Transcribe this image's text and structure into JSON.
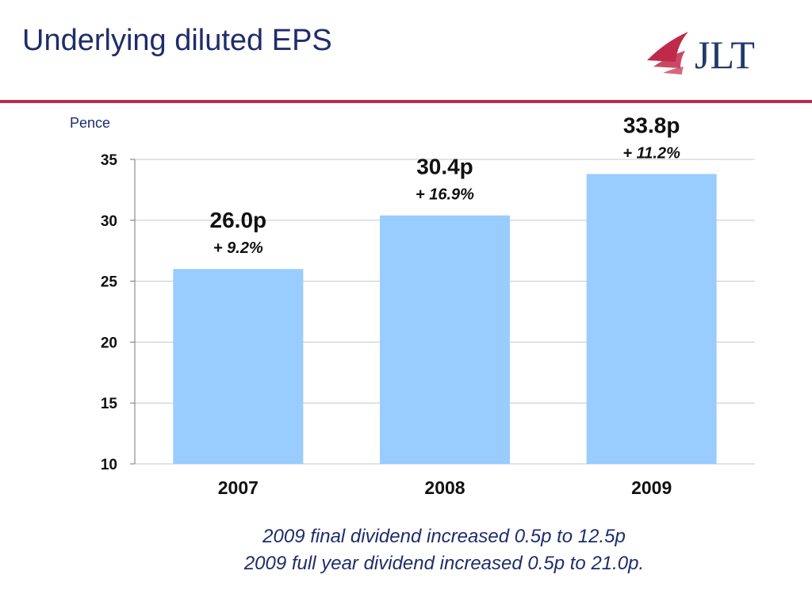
{
  "page": {
    "title": "Underlying diluted EPS",
    "unit_label": "Pence",
    "logo_text": "JLT",
    "notes": [
      "2009 final dividend increased 0.5p to 12.5p",
      "2009 full year dividend increased 0.5p to 21.0p."
    ]
  },
  "colors": {
    "title": "#1f2d6b",
    "rule": "#c0294a",
    "bar": "#99ccff",
    "logo_red": "#c0294a",
    "logo_navy": "#1f3a6b"
  },
  "chart_data": {
    "type": "bar",
    "categories": [
      "2007",
      "2008",
      "2009"
    ],
    "values": [
      26.0,
      30.4,
      33.8
    ],
    "data_labels": [
      "26.0p",
      "30.4p",
      "33.8p"
    ],
    "growth_labels": [
      "+ 9.2%",
      "+ 16.9%",
      "+ 11.2%"
    ],
    "ylim": [
      10,
      35
    ],
    "yticks": [
      "10",
      "15",
      "20",
      "25",
      "30",
      "35"
    ],
    "ylabel": "Pence",
    "grid": true
  }
}
